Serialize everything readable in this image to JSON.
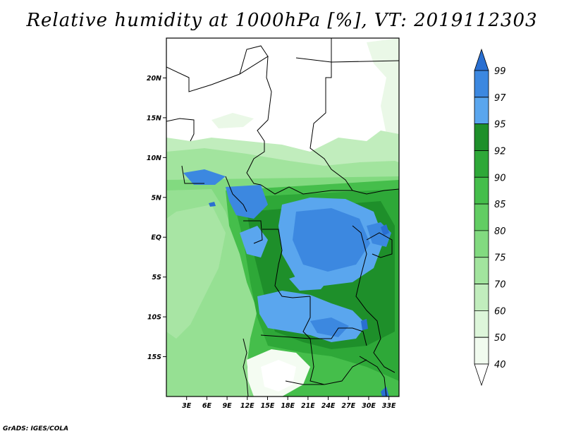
{
  "title": "Relative humidity at 1000hPa [%], VT: 2019112303",
  "credit": "GrADS: IGES/COLA",
  "map": {
    "lon_range": [
      0,
      34.5
    ],
    "lat_range": [
      -20,
      25
    ],
    "lat_ticks": [
      {
        "value": 20,
        "label": "20N"
      },
      {
        "value": 15,
        "label": "15N"
      },
      {
        "value": 10,
        "label": "10N"
      },
      {
        "value": 5,
        "label": "5N"
      },
      {
        "value": 0,
        "label": "EQ"
      },
      {
        "value": -5,
        "label": "5S"
      },
      {
        "value": -10,
        "label": "10S"
      },
      {
        "value": -15,
        "label": "15S"
      }
    ],
    "lon_ticks": [
      {
        "value": 3,
        "label": "3E"
      },
      {
        "value": 6,
        "label": "6E"
      },
      {
        "value": 9,
        "label": "9E"
      },
      {
        "value": 12,
        "label": "12E"
      },
      {
        "value": 15,
        "label": "15E"
      },
      {
        "value": 18,
        "label": "18E"
      },
      {
        "value": 21,
        "label": "21E"
      },
      {
        "value": 24,
        "label": "24E"
      },
      {
        "value": 27,
        "label": "27E"
      },
      {
        "value": 30,
        "label": "30E"
      },
      {
        "value": 33,
        "label": "33E"
      }
    ]
  },
  "colorbar": {
    "levels": [
      "99",
      "97",
      "95",
      "92",
      "90",
      "85",
      "80",
      "75",
      "70",
      "60",
      "50",
      "40"
    ],
    "colors": [
      "#2a6fd1",
      "#3c88e0",
      "#5aa6ee",
      "#1e8f2a",
      "#2ea838",
      "#45be4b",
      "#62cd63",
      "#82da80",
      "#a2e49e",
      "#c1edbd",
      "#ddf6da",
      "#f1fbef",
      "#ffffff"
    ]
  }
}
